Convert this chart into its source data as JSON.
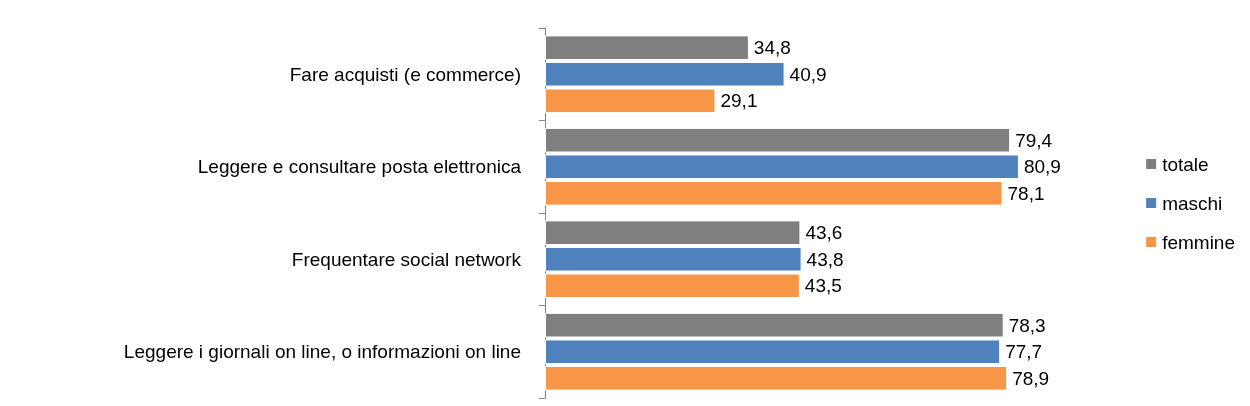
{
  "chart_data": {
    "type": "bar",
    "orientation": "horizontal",
    "categories": [
      "Fare acquisti (e commerce)",
      "Leggere e consultare posta elettronica",
      "Frequentare social network",
      "Leggere i giornali on line, o informazioni on line"
    ],
    "series": [
      {
        "name": "totale",
        "color": "#7f7f7f",
        "values": [
          34.8,
          79.4,
          43.6,
          78.3
        ],
        "value_labels": [
          "34,8",
          "79,4",
          "43,6",
          "78,3"
        ]
      },
      {
        "name": "maschi",
        "color": "#4f81bd",
        "values": [
          40.9,
          80.9,
          43.8,
          77.7
        ],
        "value_labels": [
          "40,9",
          "80,9",
          "43,8",
          "77,7"
        ]
      },
      {
        "name": "femmine",
        "color": "#f79646",
        "values": [
          29.1,
          78.1,
          43.5,
          78.9
        ],
        "value_labels": [
          "29,1",
          "78,1",
          "43,5",
          "78,9"
        ]
      }
    ],
    "legend": "right",
    "grid": false
  }
}
